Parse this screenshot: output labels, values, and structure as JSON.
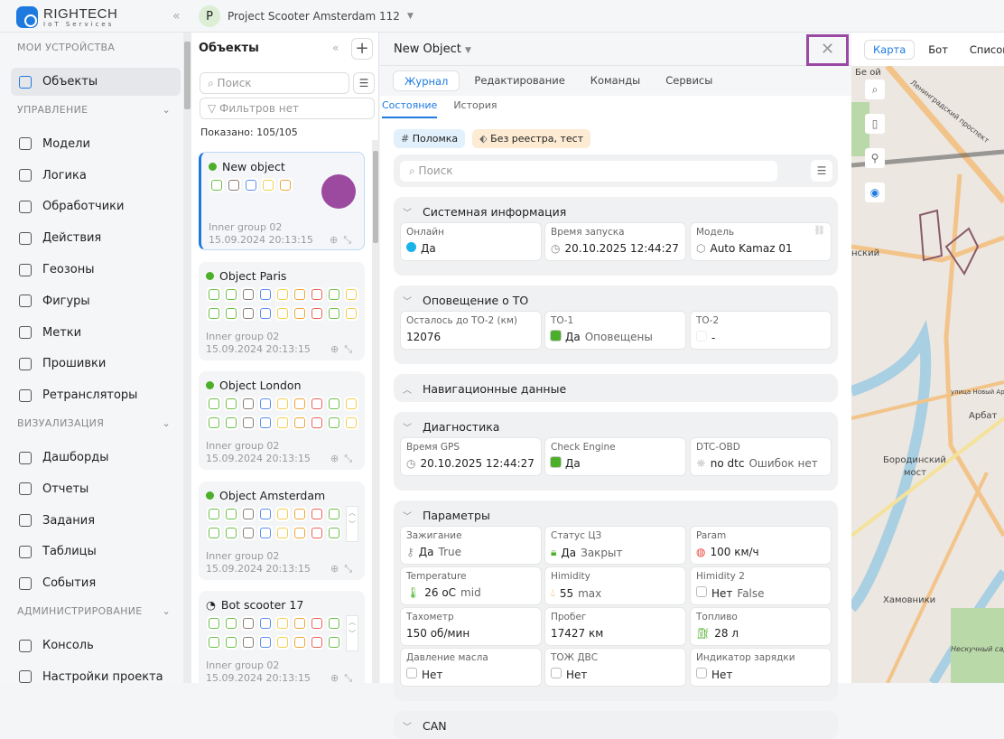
{
  "brand": {
    "name": "RIGHTECH",
    "tagline": "IoT Services"
  },
  "project": {
    "avatar": "P",
    "name": "Project Scooter Amsterdam 112"
  },
  "sidebar": [
    {
      "type": "section",
      "label": "МОИ УСТРОЙСТВА"
    },
    {
      "type": "item",
      "label": "Объекты",
      "active": true
    },
    {
      "type": "section",
      "label": "УПРАВЛЕНИЕ",
      "chevron": true
    },
    {
      "type": "item",
      "label": "Модели"
    },
    {
      "type": "item",
      "label": "Логика"
    },
    {
      "type": "item",
      "label": "Обработчики"
    },
    {
      "type": "item",
      "label": "Действия"
    },
    {
      "type": "item",
      "label": "Геозоны"
    },
    {
      "type": "item",
      "label": "Фигуры"
    },
    {
      "type": "item",
      "label": "Метки"
    },
    {
      "type": "item",
      "label": "Прошивки"
    },
    {
      "type": "item",
      "label": "Ретрансляторы"
    },
    {
      "type": "section",
      "label": "ВИЗУАЛИЗАЦИЯ",
      "chevron": true
    },
    {
      "type": "item",
      "label": "Дашборды"
    },
    {
      "type": "item",
      "label": "Отчеты"
    },
    {
      "type": "item",
      "label": "Задания"
    },
    {
      "type": "item",
      "label": "Таблицы"
    },
    {
      "type": "item",
      "label": "События"
    },
    {
      "type": "section",
      "label": "АДМИНИСТРИРОВАНИЕ",
      "chevron": true
    },
    {
      "type": "item",
      "label": "Консоль"
    },
    {
      "type": "item",
      "label": "Настройки проекта"
    }
  ],
  "objects": {
    "title": "Объекты",
    "search_placeholder": "Поиск",
    "filter_text": "Фильтров нет",
    "count_text": "Показано: 105/105",
    "items": [
      {
        "name": "New object",
        "status": "online",
        "selected": true,
        "group": "Inner group 02",
        "time": "15.09.2024 20:13:15",
        "colors": [
          [
            "#6cc04a",
            "#8a7b75",
            "#5b8def",
            "#f2cf4f",
            "#f0a43a"
          ]
        ],
        "marker_color": "#9c4aa0"
      },
      {
        "name": "Object Paris",
        "status": "online",
        "group": "Inner group 02",
        "time": "15.09.2024 20:13:15",
        "colors": [
          [
            "#6cc04a",
            "#6cc04a",
            "#8a7b75",
            "#5b8def",
            "#f2cf4f",
            "#f0a43a",
            "#e8625a",
            "#6cc04a",
            "#f2cf4f"
          ],
          [
            "#6cc04a",
            "#6cc04a",
            "#8a7b75",
            "#5b8def",
            "#f2cf4f",
            "#f0a43a",
            "#e8625a",
            "#6cc04a",
            "#f2cf4f"
          ]
        ]
      },
      {
        "name": "Object London",
        "status": "online",
        "group": "Inner group 02",
        "time": "15.09.2024 20:13:15",
        "colors": [
          [
            "#6cc04a",
            "#6cc04a",
            "#8a7b75",
            "#5b8def",
            "#f2cf4f",
            "#f0a43a",
            "#e8625a",
            "#6cc04a",
            "#f2cf4f"
          ],
          [
            "#6cc04a",
            "#6cc04a",
            "#8a7b75",
            "#5b8def",
            "#f2cf4f",
            "#f0a43a",
            "#e8625a",
            "#6cc04a",
            "#f2cf4f"
          ]
        ]
      },
      {
        "name": "Object Amsterdam",
        "status": "online",
        "scroll": true,
        "group": "Inner group 02",
        "time": "15.09.2024 20:13:15",
        "colors": [
          [
            "#6cc04a",
            "#6cc04a",
            "#8a7b75",
            "#5b8def",
            "#f2cf4f",
            "#f0a43a",
            "#e8625a",
            "#6cc04a"
          ],
          [
            "#6cc04a",
            "#6cc04a",
            "#8a7b75",
            "#5b8def",
            "#f2cf4f",
            "#f0a43a",
            "#e8625a",
            "#6cc04a"
          ]
        ]
      },
      {
        "name": "Bot scooter 17",
        "status": "bot",
        "scroll": true,
        "group": "Inner group 02",
        "time": "15.09.2024 20:13:15",
        "colors": [
          [
            "#6cc04a",
            "#6cc04a",
            "#8a7b75",
            "#5b8def",
            "#f2cf4f",
            "#f0a43a",
            "#e8625a",
            "#6cc04a"
          ],
          [
            "#6cc04a",
            "#6cc04a",
            "#8a7b75",
            "#5b8def",
            "#f2cf4f",
            "#f0a43a",
            "#e8625a",
            "#6cc04a"
          ]
        ]
      }
    ]
  },
  "detail": {
    "title": "New Object",
    "tabs": [
      "Журнал",
      "Редактирование",
      "Команды",
      "Сервисы"
    ],
    "subtabs": [
      "Состояние",
      "История"
    ],
    "tags": [
      {
        "label": "Поломка",
        "icon": "#",
        "bg": "#e1f0fb"
      },
      {
        "label": "Без реестра, тест",
        "icon": "⬖",
        "bg": "#fdebd3"
      }
    ],
    "search_placeholder": "Поиск",
    "sections": [
      {
        "title": "Системная информация",
        "open": true,
        "cells": [
          {
            "label": "Онлайн",
            "icon": "dot-blue",
            "value": "Да"
          },
          {
            "label": "Время запуска",
            "icon": "clock",
            "value": "20.10.2025 12:44:27"
          },
          {
            "label": "Модель",
            "icon": "cube",
            "value": "Auto Kamaz 01",
            "link": true
          }
        ]
      },
      {
        "title": "Оповещение о ТО",
        "open": true,
        "cells": [
          {
            "label": "Осталось до ТО-2 (км)",
            "value": "12076"
          },
          {
            "label": "ТО-1",
            "icon": "green-square",
            "value": "Да",
            "extra": "Оповещены"
          },
          {
            "label": "ТО-2",
            "icon": "empty-box",
            "value": "-"
          }
        ]
      },
      {
        "title": "Навигационные данные",
        "open": false,
        "cells": []
      },
      {
        "title": "Диагностика",
        "open": true,
        "cells": [
          {
            "label": "Время GPS",
            "icon": "clock",
            "value": "20.10.2025 12:44:27"
          },
          {
            "label": "Check Engine",
            "icon": "green-square",
            "value": "Да"
          },
          {
            "label": "DTC-OBD",
            "icon": "bulb",
            "value": "no dtc",
            "extra": "Ошибок нет"
          }
        ]
      },
      {
        "title": "Параметры",
        "open": true,
        "cells": [
          {
            "label": "Зажигание",
            "icon": "key",
            "value": "Да",
            "extra": "True"
          },
          {
            "label": "Статус ЦЗ",
            "icon": "lock",
            "value": "Да",
            "extra": "Закрыт"
          },
          {
            "label": "Param",
            "icon": "gauge",
            "value": "100 км/ч"
          },
          {
            "label": "Temperature",
            "icon": "thermometer",
            "value": "26 оС",
            "extra": "mid"
          },
          {
            "label": "Himidity",
            "icon": "drop",
            "value": "55",
            "extra": "max"
          },
          {
            "label": "Himidity 2",
            "icon": "checkbox",
            "value": "Нет",
            "extra": "False"
          },
          {
            "label": "Тахометр",
            "value": "150 об/мин"
          },
          {
            "label": "Пробег",
            "value": "17427 км"
          },
          {
            "label": "Топливо",
            "icon": "fuel",
            "value": "28 л"
          },
          {
            "label": "Давление масла",
            "icon": "checkbox",
            "value": "Нет"
          },
          {
            "label": "ТОЖ ДВС",
            "icon": "checkbox",
            "value": "Нет"
          },
          {
            "label": "Индикатор зарядки",
            "icon": "checkbox",
            "value": "Нет"
          }
        ]
      },
      {
        "title": "CAN",
        "open": true,
        "cells": []
      }
    ]
  },
  "right_panel": {
    "tabs": [
      "Карта",
      "Бот",
      "Список"
    ],
    "active": "Карта",
    "map_labels": [
      "Ленинградский проспект",
      "Бе  ой",
      "нский",
      "улица Новый Арбат",
      "Арбат",
      "Бородинский",
      "мост",
      "Хамовники",
      "Нескучный сад"
    ]
  },
  "accent": "#1f7ae0"
}
